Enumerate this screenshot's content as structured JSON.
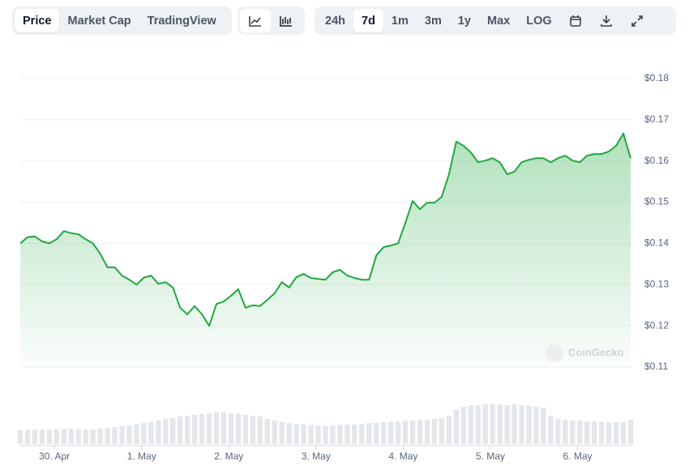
{
  "tabs": [
    "Price",
    "Market Cap",
    "TradingView"
  ],
  "active_tab": 0,
  "ranges": [
    "24h",
    "7d",
    "1m",
    "3m",
    "1y",
    "Max",
    "LOG"
  ],
  "active_range": 1,
  "watermark": "CoinGecko",
  "chart_data": {
    "type": "line",
    "series": [
      {
        "color": "#20a83f",
        "values": [
          0.14,
          0.1415,
          0.1417,
          0.1405,
          0.14,
          0.141,
          0.143,
          0.1425,
          0.1422,
          0.141,
          0.14,
          0.1375,
          0.1342,
          0.1342,
          0.1322,
          0.1312,
          0.13,
          0.1317,
          0.1322,
          0.1302,
          0.1306,
          0.1293,
          0.1244,
          0.1228,
          0.1248,
          0.1228,
          0.12,
          0.1253,
          0.1259,
          0.1273,
          0.1289,
          0.1244,
          0.125,
          0.1248,
          0.1263,
          0.1279,
          0.1306,
          0.1293,
          0.1318,
          0.1326,
          0.1316,
          0.1314,
          0.1312,
          0.133,
          0.1336,
          0.1322,
          0.1316,
          0.1312,
          0.1312,
          0.1371,
          0.1391,
          0.1395,
          0.14,
          0.145,
          0.1503,
          0.1483,
          0.1499,
          0.1499,
          0.1513,
          0.1568,
          0.1647,
          0.1637,
          0.1621,
          0.1597,
          0.1601,
          0.1607,
          0.1597,
          0.1568,
          0.1574,
          0.1597,
          0.1603,
          0.1607,
          0.1607,
          0.1597,
          0.1607,
          0.1613,
          0.1601,
          0.1597,
          0.1613,
          0.1617,
          0.1617,
          0.1623,
          0.1637,
          0.1667,
          0.1607
        ]
      }
    ],
    "volume": {
      "color": "#e3e6ea",
      "values": [
        34,
        35,
        35,
        36,
        36,
        37,
        37,
        38,
        37,
        36,
        36,
        38,
        40,
        42,
        44,
        46,
        48,
        52,
        55,
        58,
        62,
        64,
        68,
        70,
        72,
        74,
        76,
        78,
        78,
        76,
        75,
        72,
        70,
        68,
        62,
        58,
        55,
        52,
        50,
        48,
        46,
        45,
        45,
        46,
        47,
        48,
        48,
        50,
        52,
        52,
        54,
        55,
        56,
        57,
        58,
        60,
        60,
        62,
        64,
        70,
        85,
        92,
        95,
        96,
        98,
        98,
        97,
        96,
        98,
        96,
        95,
        92,
        90,
        70,
        62,
        60,
        58,
        58,
        56,
        56,
        55,
        54,
        54,
        55,
        60
      ]
    },
    "ylim": [
      0.11,
      0.18
    ],
    "yticks": [
      {
        "value": 0.18,
        "label": "$0.18"
      },
      {
        "value": 0.17,
        "label": "$0.17"
      },
      {
        "value": 0.16,
        "label": "$0.16"
      },
      {
        "value": 0.15,
        "label": "$0.15"
      },
      {
        "value": 0.14,
        "label": "$0.14"
      },
      {
        "value": 0.13,
        "label": "$0.13"
      },
      {
        "value": 0.12,
        "label": "$0.12"
      },
      {
        "value": 0.11,
        "label": "$0.11"
      }
    ],
    "xticks": [
      {
        "value": 4.7,
        "label": "30. Apr"
      },
      {
        "value": 16.7,
        "label": "1. May"
      },
      {
        "value": 28.7,
        "label": "2. May"
      },
      {
        "value": 40.7,
        "label": "3. May"
      },
      {
        "value": 52.7,
        "label": "4. May"
      },
      {
        "value": 64.7,
        "label": "5. May"
      },
      {
        "value": 76.7,
        "label": "6. May"
      }
    ],
    "grid": true
  }
}
